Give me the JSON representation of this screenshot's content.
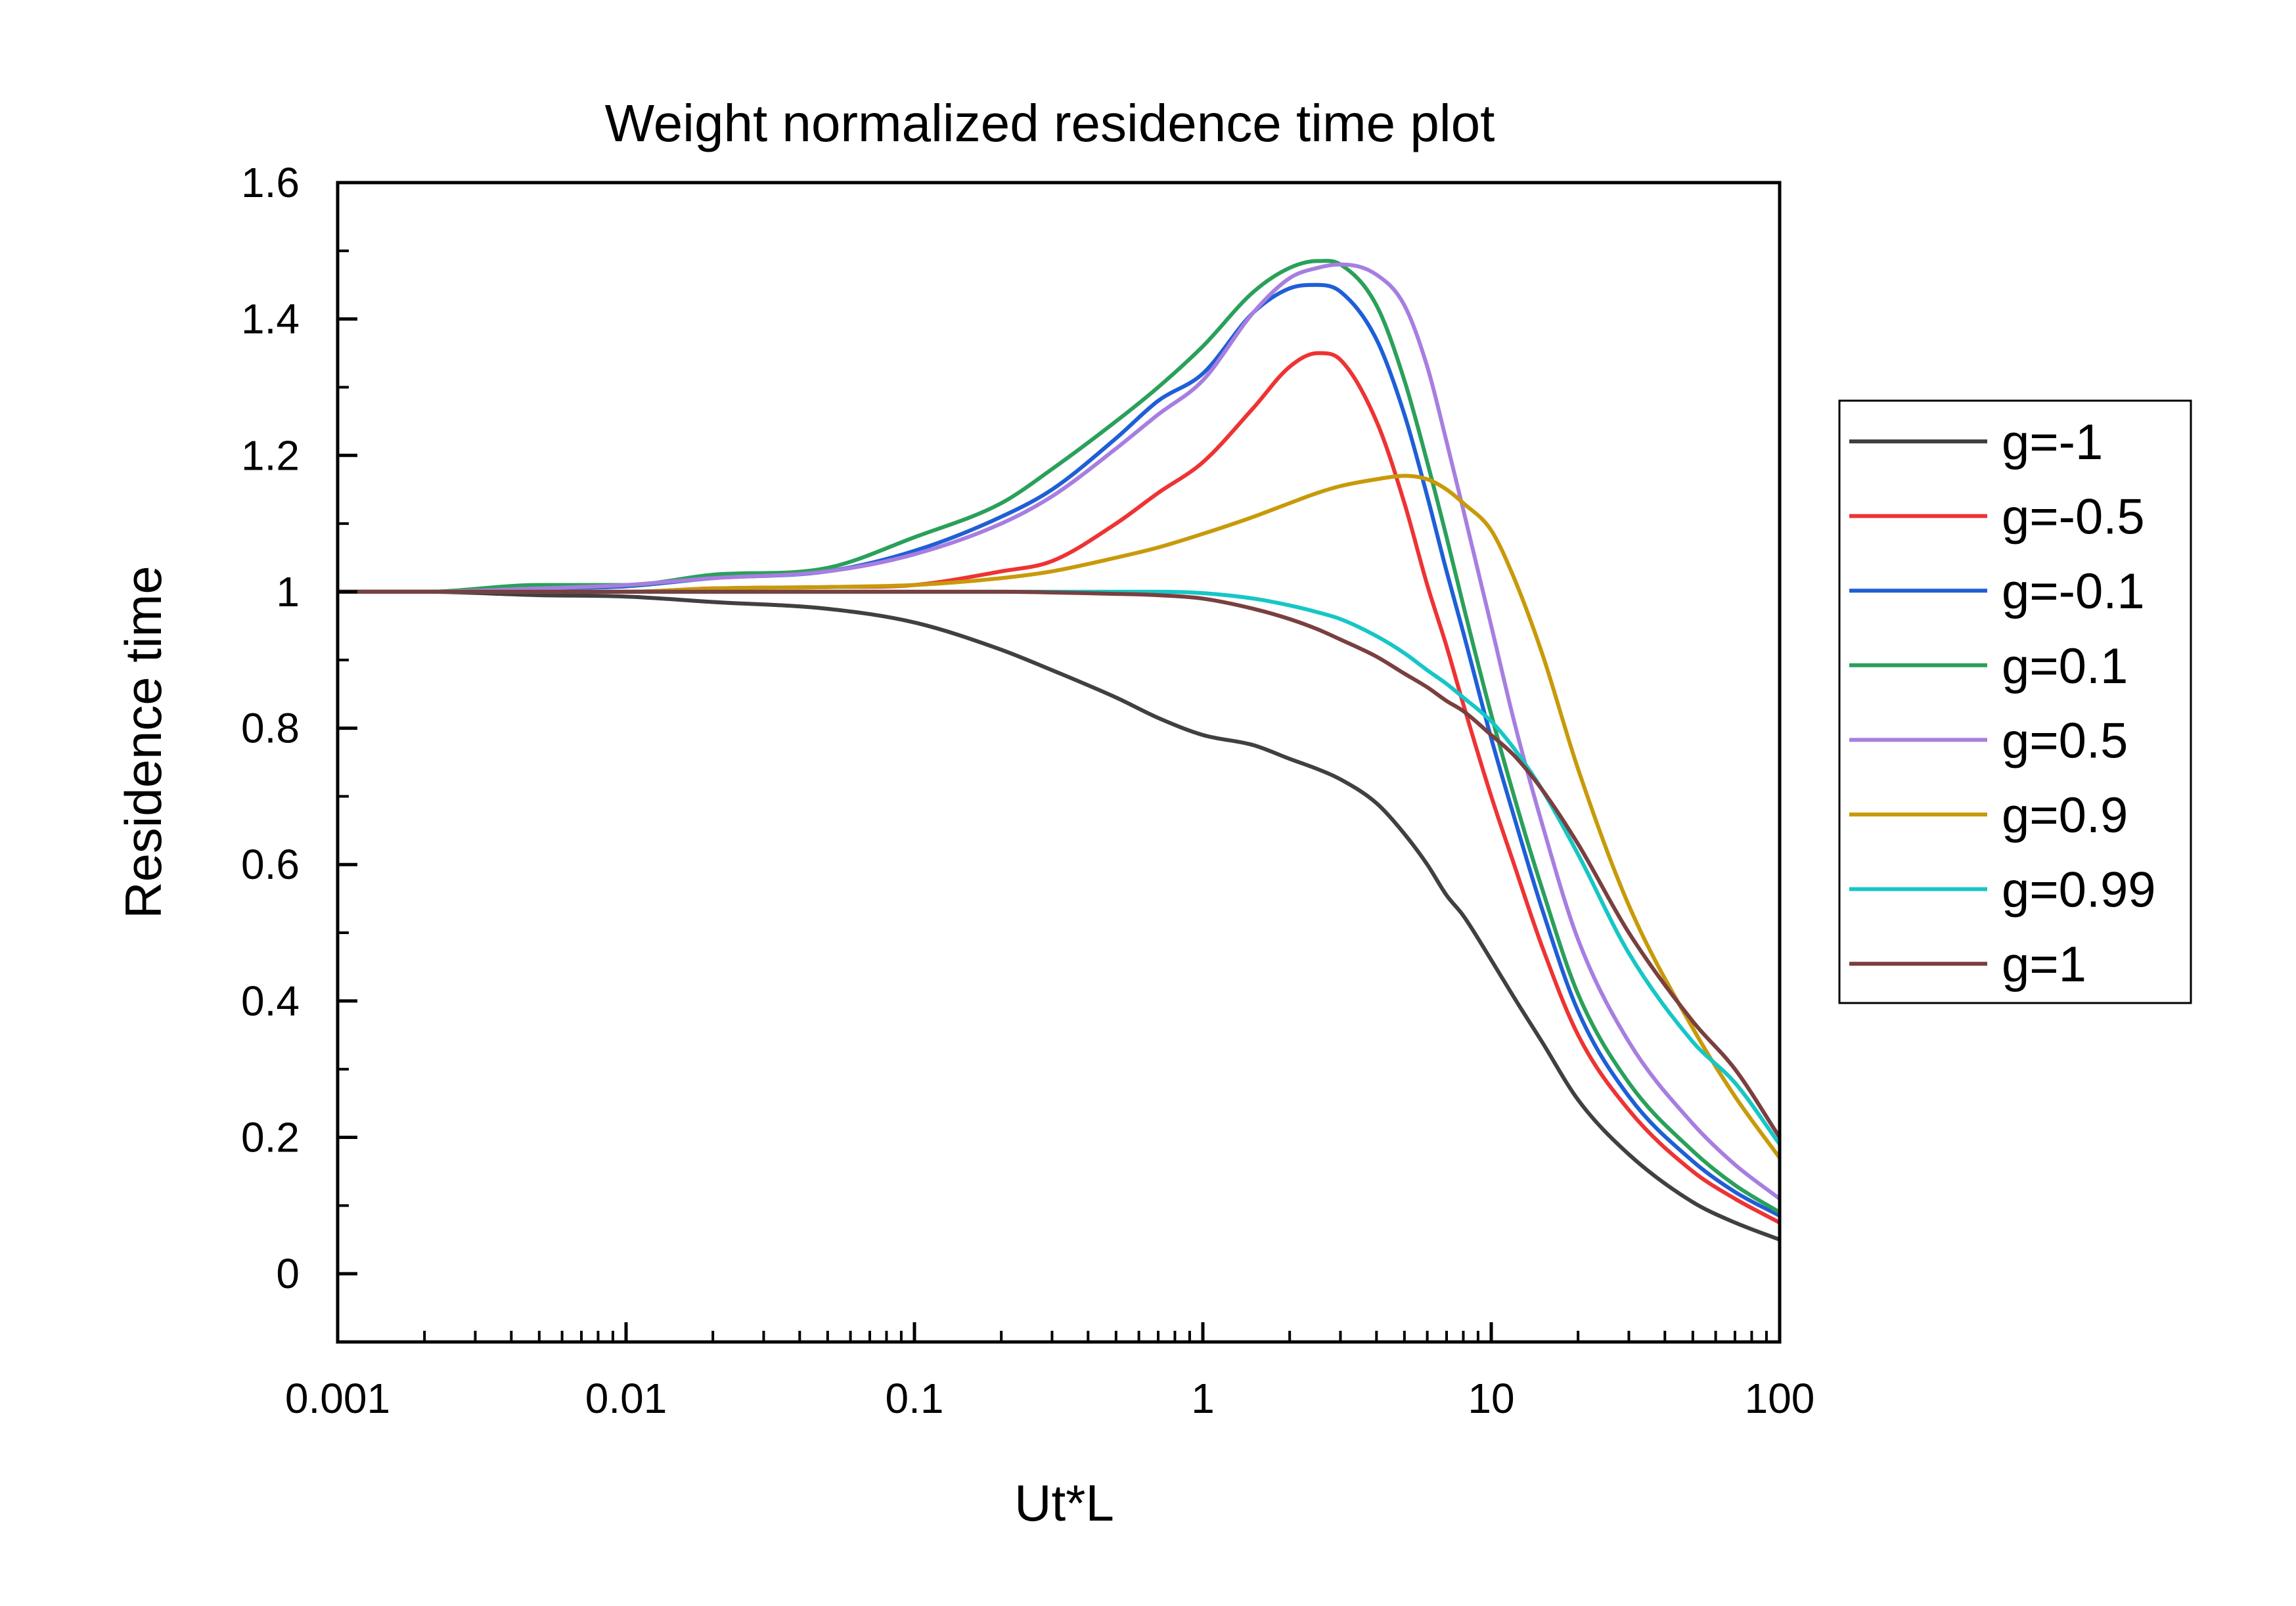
{
  "chart_data": {
    "type": "line",
    "title": "Weight normalized residence time plot",
    "xlabel": "Ut*L",
    "ylabel": "Residence time",
    "xscale": "log",
    "xlim": [
      0.001,
      100
    ],
    "ylim": [
      -0.1,
      1.6
    ],
    "xticks": [
      "0.001",
      "0.01",
      "0.1",
      "1",
      "10",
      "100"
    ],
    "yticks": [
      "0",
      "0.2",
      "0.4",
      "0.6",
      "0.8",
      "1",
      "1.2",
      "1.4",
      "1.6"
    ],
    "grid": false,
    "legend_position": "right",
    "x": [
      0.001,
      0.002,
      0.005,
      0.01,
      0.02,
      0.05,
      0.1,
      0.2,
      0.3,
      0.5,
      0.7,
      1,
      1.5,
      2,
      2.5,
      3,
      4,
      5,
      6,
      7,
      8,
      10,
      12,
      15,
      20,
      30,
      50,
      70,
      100
    ],
    "series": [
      {
        "name": "g=-1",
        "color": "#404040",
        "values": [
          1.0,
          1.0,
          0.995,
          0.993,
          0.985,
          0.975,
          0.955,
          0.915,
          0.885,
          0.845,
          0.815,
          0.79,
          0.775,
          0.755,
          0.74,
          0.725,
          0.69,
          0.645,
          0.6,
          0.555,
          0.525,
          0.46,
          0.405,
          0.34,
          0.255,
          0.175,
          0.105,
          0.075,
          0.05
        ]
      },
      {
        "name": "g=-0.5",
        "color": "#ee3333",
        "values": [
          1.0,
          1.0,
          1.0,
          1.0,
          1.005,
          1.007,
          1.01,
          1.03,
          1.045,
          1.1,
          1.145,
          1.19,
          1.27,
          1.33,
          1.35,
          1.34,
          1.25,
          1.13,
          1.01,
          0.92,
          0.835,
          0.7,
          0.6,
          0.48,
          0.35,
          0.24,
          0.15,
          0.11,
          0.075
        ]
      },
      {
        "name": "g=-0.1",
        "color": "#1f5fd6",
        "values": [
          1.0,
          1.0,
          1.005,
          1.008,
          1.02,
          1.03,
          1.06,
          1.11,
          1.15,
          1.225,
          1.28,
          1.32,
          1.41,
          1.445,
          1.45,
          1.44,
          1.37,
          1.26,
          1.14,
          1.03,
          0.94,
          0.785,
          0.67,
          0.535,
          0.385,
          0.26,
          0.165,
          0.12,
          0.085
        ]
      },
      {
        "name": "g=0.1",
        "color": "#2aa05a",
        "values": [
          1.0,
          1.0,
          1.01,
          1.01,
          1.025,
          1.035,
          1.08,
          1.13,
          1.18,
          1.25,
          1.3,
          1.36,
          1.44,
          1.475,
          1.485,
          1.48,
          1.42,
          1.31,
          1.19,
          1.08,
          0.98,
          0.82,
          0.7,
          0.565,
          0.41,
          0.28,
          0.18,
          0.13,
          0.09
        ]
      },
      {
        "name": "g=0.5",
        "color": "#a77ee0",
        "values": [
          1.0,
          1.0,
          1.005,
          1.01,
          1.02,
          1.03,
          1.055,
          1.1,
          1.14,
          1.21,
          1.26,
          1.31,
          1.41,
          1.46,
          1.475,
          1.48,
          1.465,
          1.42,
          1.33,
          1.22,
          1.12,
          0.95,
          0.81,
          0.66,
          0.49,
          0.34,
          0.22,
          0.16,
          0.11
        ]
      },
      {
        "name": "g=0.9",
        "color": "#c89a0a",
        "values": [
          1.0,
          1.0,
          1.0,
          1.0,
          1.005,
          1.007,
          1.01,
          1.02,
          1.03,
          1.05,
          1.065,
          1.085,
          1.11,
          1.13,
          1.145,
          1.155,
          1.165,
          1.17,
          1.165,
          1.15,
          1.13,
          1.09,
          1.02,
          0.91,
          0.74,
          0.54,
          0.36,
          0.26,
          0.17
        ]
      },
      {
        "name": "g=0.99",
        "color": "#17c6c6",
        "values": [
          1.0,
          1.0,
          1.0,
          1.0,
          1.0,
          1.0,
          1.0,
          1.0,
          1.0,
          1.0,
          1.0,
          0.998,
          0.99,
          0.98,
          0.97,
          0.96,
          0.935,
          0.91,
          0.885,
          0.865,
          0.845,
          0.81,
          0.77,
          0.71,
          0.615,
          0.47,
          0.34,
          0.28,
          0.19
        ]
      },
      {
        "name": "g=1",
        "color": "#7a3f3f",
        "values": [
          1.0,
          1.0,
          1.0,
          1.0,
          1.0,
          1.0,
          1.0,
          1.0,
          0.999,
          0.997,
          0.995,
          0.99,
          0.975,
          0.96,
          0.945,
          0.93,
          0.905,
          0.88,
          0.86,
          0.84,
          0.825,
          0.79,
          0.76,
          0.71,
          0.63,
          0.5,
          0.37,
          0.3,
          0.2
        ]
      }
    ]
  }
}
